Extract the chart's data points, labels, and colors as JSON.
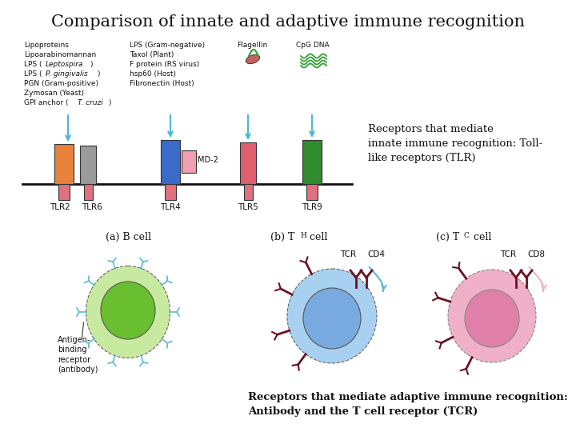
{
  "title": "Comparison of innate and adaptive immune recognition",
  "title_fontsize": 15,
  "title_font": "serif",
  "bg_color": "#ffffff",
  "colors": {
    "tlr2": "#e8823a",
    "tlr6": "#9b9b9b",
    "tlr4": "#3a6bc8",
    "md2": "#f0a0b0",
    "tlr5": "#e06070",
    "tlr9": "#2e8b2e",
    "arrow_blue": "#4ab8d0",
    "membrane_line": "#111111",
    "receptor_stub": "#e07080",
    "b_cell_outer": "#c8eaa0",
    "b_cell_inner": "#6abf30",
    "th_cell_outer": "#a8d0f0",
    "th_cell_inner": "#78aae0",
    "tc_cell_outer": "#f0b0c8",
    "tc_cell_inner": "#e080a8",
    "tcr_color": "#6b1020",
    "b_receptor_color": "#5ab8d8",
    "flagellin_body": "#c86060",
    "flagellin_tail": "#30a030",
    "cpg_color": "#30a030"
  },
  "text": {
    "tlr_annotation": "Receptors that mediate\ninnate immune recognition: Toll-\nlike receptors (TLR)",
    "adaptive_annotation": "Receptors that mediate adaptive immune recognition:\nAntibody and the T cell receptor (TCR)",
    "b_cell_label": "(a) B cell",
    "antigen_label": "Antigen-\nbinding\nreceptor\n(antibody)",
    "flagellin_text": "Flagellin",
    "cpg_text": "CpG DNA"
  }
}
